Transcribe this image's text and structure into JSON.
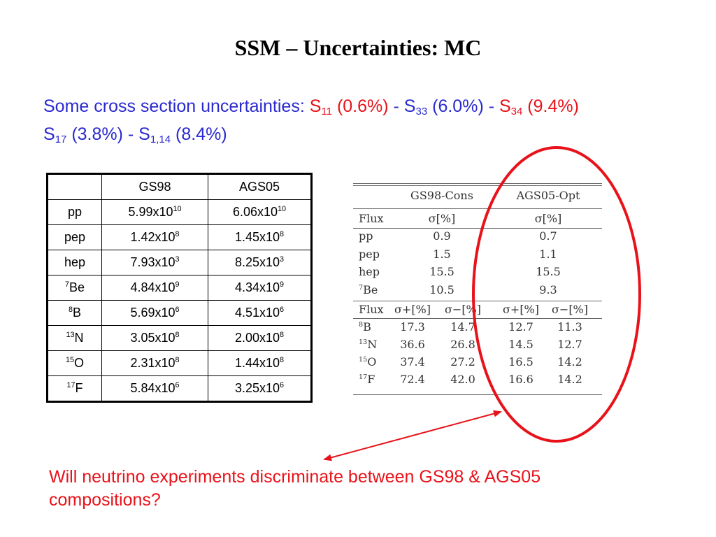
{
  "title": "SSM – Uncertainties: MC",
  "intro": {
    "lead": "Some cross section uncertainties: ",
    "s11_s": "S",
    "s11_sub": "11",
    "s11_val": " (0.6%)",
    "sep1": " - S",
    "s33_sub": "33",
    "s33_val": " (6.0%) - ",
    "s34_s": "S",
    "s34_sub": "34",
    "s34_val": " (9.4%)",
    "s17_s": "S",
    "s17_sub": "17",
    "s17_val": " (3.8%) - S",
    "s114_sub": "1,14",
    "s114_val": " (8.4%)"
  },
  "flux_table": {
    "headers": [
      "",
      "GS98",
      "AGS05"
    ],
    "rows": [
      {
        "sup": "",
        "label": "pp",
        "gs98": "5.99x10",
        "gs98_exp": "10",
        "ags05": "6.06x10",
        "ags05_exp": "10"
      },
      {
        "sup": "",
        "label": "pep",
        "gs98": "1.42x10",
        "gs98_exp": "8",
        "ags05": "1.45x10",
        "ags05_exp": "8"
      },
      {
        "sup": "",
        "label": "hep",
        "gs98": "7.93x10",
        "gs98_exp": "3",
        "ags05": "8.25x10",
        "ags05_exp": "3"
      },
      {
        "sup": "7",
        "label": "Be",
        "gs98": "4.84x10",
        "gs98_exp": "9",
        "ags05": "4.34x10",
        "ags05_exp": "9"
      },
      {
        "sup": "8",
        "label": "B",
        "gs98": "5.69x10",
        "gs98_exp": "6",
        "ags05": "4.51x10",
        "ags05_exp": "6"
      },
      {
        "sup": "13",
        "label": "N",
        "gs98": "3.05x10",
        "gs98_exp": "8",
        "ags05": "2.00x10",
        "ags05_exp": "8"
      },
      {
        "sup": "15",
        "label": "O",
        "gs98": "2.31x10",
        "gs98_exp": "8",
        "ags05": "1.44x10",
        "ags05_exp": "8"
      },
      {
        "sup": "17",
        "label": "F",
        "gs98": "5.84x10",
        "gs98_exp": "6",
        "ags05": "3.25x10",
        "ags05_exp": "6"
      }
    ]
  },
  "uncert_table": {
    "col_gs98": "GS98-Cons",
    "col_ags05": "AGS05-Opt",
    "flux_label": "Flux",
    "sigma": "σ[%]",
    "sigma_plus": "σ+[%]",
    "sigma_minus": "σ−[%]",
    "sym_rows": [
      {
        "sup": "",
        "label": "pp",
        "gs98": "0.9",
        "ags05": "0.7"
      },
      {
        "sup": "",
        "label": "pep",
        "gs98": "1.5",
        "ags05": "1.1"
      },
      {
        "sup": "",
        "label": "hep",
        "gs98": "15.5",
        "ags05": "15.5"
      },
      {
        "sup": "7",
        "label": "Be",
        "gs98": "10.5",
        "ags05": "9.3"
      }
    ],
    "asym_rows": [
      {
        "sup": "8",
        "label": "B",
        "gp": "17.3",
        "gm": "14.7",
        "ap": "12.7",
        "am": "11.3"
      },
      {
        "sup": "13",
        "label": "N",
        "gp": "36.6",
        "gm": "26.8",
        "ap": "14.5",
        "am": "12.7"
      },
      {
        "sup": "15",
        "label": "O",
        "gp": "37.4",
        "gm": "27.2",
        "ap": "16.5",
        "am": "14.2"
      },
      {
        "sup": "17",
        "label": "F",
        "gp": "72.4",
        "gm": "42.0",
        "ap": "16.6",
        "am": "14.2"
      }
    ]
  },
  "question": "Will neutrino experiments discriminate between GS98 & AGS05 compositions?",
  "colors": {
    "blue_text": "#2a2ad0",
    "red_text": "#e8121a",
    "ellipse": "#e8121a"
  }
}
